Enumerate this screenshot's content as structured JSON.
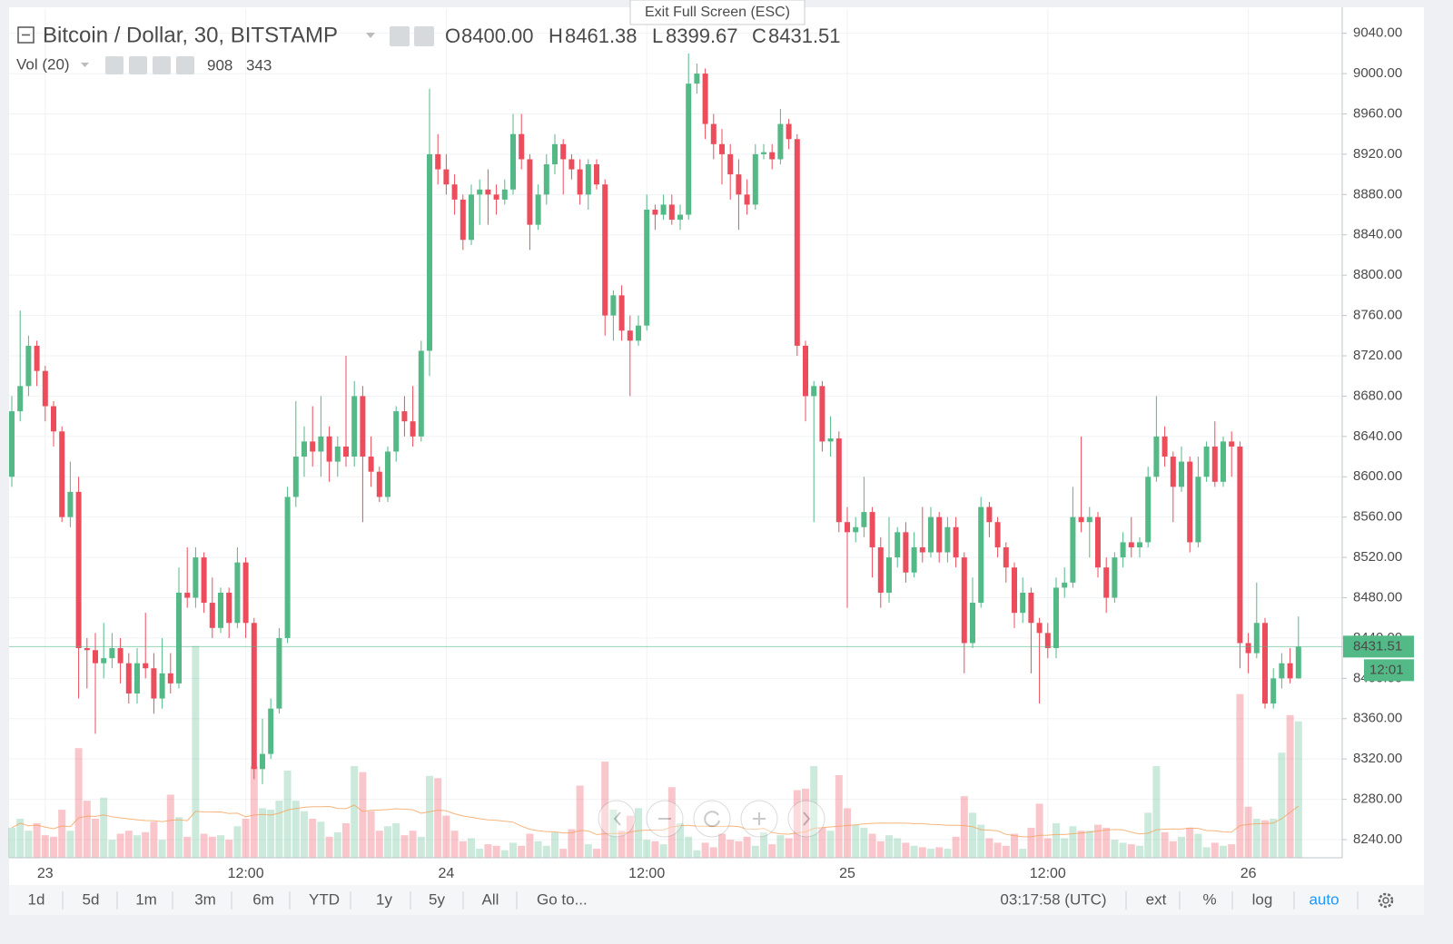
{
  "chart_data": {
    "type": "candlestick",
    "title": "Bitcoin / Dollar, 30, BITSTAMP",
    "ohlc_legend": [
      {
        "key": "O",
        "label": "8400.00"
      },
      {
        "key": "H",
        "label": "8461.38"
      },
      {
        "key": "L",
        "label": "8399.67"
      },
      {
        "key": "C",
        "label": "8431.51"
      }
    ],
    "volume_legend": {
      "label": "Vol (20)",
      "value": 908,
      "ma": 343
    },
    "countdown": "12:01",
    "exit_button": "Exit Full Screen (ESC)",
    "up_color": "#53b987",
    "down_color": "#eb4d5c",
    "ma_color": "#f5a25d",
    "grid": true,
    "categories": [
      null,
      null,
      null,
      null,
      "23",
      null,
      null,
      null,
      null,
      null,
      null,
      null,
      null,
      null,
      null,
      null,
      null,
      null,
      null,
      null,
      null,
      null,
      null,
      null,
      null,
      null,
      null,
      null,
      "12:00",
      null,
      null,
      null,
      null,
      null,
      null,
      null,
      null,
      null,
      null,
      null,
      null,
      null,
      null,
      null,
      null,
      null,
      null,
      null,
      null,
      null,
      null,
      null,
      "24",
      null,
      null,
      null,
      null,
      null,
      null,
      null,
      null,
      null,
      null,
      null,
      null,
      null,
      null,
      null,
      null,
      null,
      null,
      null,
      null,
      null,
      null,
      null,
      "12:00",
      null,
      null,
      null,
      null,
      null,
      null,
      null,
      null,
      null,
      null,
      null,
      null,
      null,
      null,
      null,
      null,
      null,
      null,
      null,
      null,
      null,
      null,
      null,
      "25",
      null,
      null,
      null,
      null,
      null,
      null,
      null,
      null,
      null,
      null,
      null,
      null,
      null,
      null,
      null,
      null,
      null,
      null,
      null,
      null,
      null,
      null,
      null,
      "12:00",
      null,
      null,
      null,
      null,
      null,
      null,
      null,
      null,
      null,
      null,
      null,
      null,
      null,
      null,
      null,
      null,
      null,
      null,
      null,
      null,
      null,
      null,
      null,
      "26",
      null,
      null,
      null,
      null,
      null,
      null
    ],
    "open": [
      8600,
      8665,
      8690,
      8730,
      8705,
      8670,
      8645,
      8560,
      8585,
      8430,
      8428,
      8415,
      8420,
      8430,
      8415,
      8385,
      8415,
      8410,
      8380,
      8405,
      8395,
      8485,
      8480,
      8520,
      8475,
      8450,
      8485,
      8455,
      8515,
      8455,
      8310,
      8325,
      8370,
      8440,
      8580,
      8620,
      8635,
      8625,
      8640,
      8615,
      8630,
      8620,
      8680,
      8620,
      8605,
      8580,
      8625,
      8665,
      8655,
      8640,
      8725,
      8920,
      8905,
      8890,
      8875,
      8835,
      8880,
      8885,
      8880,
      8875,
      8885,
      8940,
      8915,
      8850,
      8880,
      8910,
      8930,
      8915,
      8905,
      8880,
      8910,
      8890,
      8760,
      8780,
      8745,
      8735,
      8750,
      8865,
      8860,
      8870,
      8855,
      8860,
      8990,
      9000,
      8950,
      8930,
      8920,
      8900,
      8880,
      8870,
      8920,
      8922,
      8915,
      8950,
      8935,
      8730,
      8680,
      8690,
      8635,
      8638,
      8555,
      8545,
      8550,
      8565,
      8530,
      8485,
      8520,
      8545,
      8505,
      8530,
      8525,
      8560,
      8525,
      8550,
      8520,
      8435,
      8475,
      8570,
      8555,
      8530,
      8510,
      8465,
      8485,
      8455,
      8445,
      8430,
      8490,
      8495,
      8560,
      8555,
      8560,
      8510,
      8480,
      8520,
      8535,
      8530,
      8535,
      8600,
      8640,
      8620,
      8590,
      8615,
      8535,
      8600,
      8630,
      8595,
      8635,
      8630,
      8435,
      8425,
      8455,
      8375,
      8400,
      8415,
      8400
    ],
    "high": [
      8680,
      8765,
      8740,
      8735,
      8710,
      8675,
      8650,
      8615,
      8600,
      8440,
      8445,
      8455,
      8445,
      8440,
      8425,
      8430,
      8465,
      8425,
      8440,
      8425,
      8510,
      8530,
      8530,
      8525,
      8500,
      8490,
      8490,
      8530,
      8520,
      8460,
      8360,
      8380,
      8450,
      8590,
      8675,
      8650,
      8670,
      8680,
      8650,
      8640,
      8720,
      8695,
      8690,
      8640,
      8610,
      8630,
      8670,
      8680,
      8690,
      8735,
      8985,
      8940,
      8920,
      8900,
      8880,
      8890,
      8895,
      8905,
      8890,
      8895,
      8960,
      8960,
      8920,
      8890,
      8920,
      8940,
      8935,
      8920,
      8915,
      8915,
      8915,
      8895,
      8785,
      8790,
      8760,
      8760,
      8880,
      8870,
      8880,
      8880,
      8870,
      9020,
      9010,
      9005,
      8960,
      8945,
      8930,
      8915,
      8895,
      8930,
      8930,
      8930,
      8965,
      8955,
      8940,
      8735,
      8695,
      8695,
      8660,
      8645,
      8570,
      8560,
      8600,
      8570,
      8540,
      8560,
      8550,
      8555,
      8545,
      8570,
      8570,
      8565,
      8560,
      8560,
      8525,
      8500,
      8580,
      8575,
      8560,
      8535,
      8515,
      8500,
      8490,
      8460,
      8455,
      8500,
      8510,
      8590,
      8640,
      8570,
      8565,
      8520,
      8525,
      8545,
      8560,
      8540,
      8610,
      8680,
      8650,
      8625,
      8630,
      8620,
      8620,
      8635,
      8655,
      8640,
      8645,
      8635,
      8445,
      8495,
      8460,
      8410,
      8425,
      8430,
      8461.38
    ],
    "low": [
      8590,
      8655,
      8680,
      8690,
      8655,
      8630,
      8555,
      8550,
      8380,
      8390,
      8345,
      8400,
      8410,
      8395,
      8375,
      8375,
      8400,
      8365,
      8370,
      8385,
      8390,
      8470,
      8470,
      8465,
      8440,
      8445,
      8440,
      8450,
      8440,
      8300,
      8295,
      8320,
      8365,
      8435,
      8570,
      8600,
      8610,
      8600,
      8595,
      8600,
      8610,
      8610,
      8555,
      8590,
      8575,
      8575,
      8615,
      8640,
      8630,
      8635,
      8700,
      8890,
      8880,
      8860,
      8825,
      8830,
      8850,
      8850,
      8860,
      8870,
      8880,
      8905,
      8825,
      8845,
      8870,
      8900,
      8880,
      8895,
      8870,
      8865,
      8885,
      8740,
      8735,
      8735,
      8680,
      8730,
      8745,
      8845,
      8855,
      8850,
      8845,
      8855,
      8980,
      8935,
      8915,
      8890,
      8875,
      8845,
      8860,
      8865,
      8915,
      8905,
      8910,
      8925,
      8720,
      8655,
      8555,
      8625,
      8620,
      8545,
      8470,
      8535,
      8540,
      8500,
      8470,
      8475,
      8510,
      8495,
      8500,
      8515,
      8520,
      8515,
      8515,
      8510,
      8405,
      8430,
      8470,
      8540,
      8520,
      8495,
      8450,
      8455,
      8405,
      8375,
      8420,
      8420,
      8480,
      8490,
      8545,
      8520,
      8500,
      8465,
      8475,
      8510,
      8520,
      8520,
      8530,
      8595,
      8610,
      8555,
      8585,
      8525,
      8530,
      8595,
      8590,
      8590,
      8600,
      8410,
      8405,
      8420,
      8370,
      8370,
      8390,
      8395,
      8399.67
    ],
    "close": [
      8665,
      8690,
      8730,
      8705,
      8670,
      8645,
      8560,
      8585,
      8430,
      8428,
      8415,
      8420,
      8430,
      8415,
      8385,
      8415,
      8410,
      8380,
      8405,
      8395,
      8485,
      8480,
      8520,
      8475,
      8450,
      8485,
      8455,
      8515,
      8455,
      8310,
      8325,
      8370,
      8440,
      8580,
      8620,
      8635,
      8625,
      8640,
      8615,
      8630,
      8620,
      8680,
      8620,
      8605,
      8580,
      8625,
      8665,
      8655,
      8640,
      8725,
      8920,
      8905,
      8890,
      8875,
      8835,
      8880,
      8885,
      8880,
      8875,
      8885,
      8940,
      8915,
      8850,
      8880,
      8910,
      8930,
      8915,
      8905,
      8880,
      8910,
      8890,
      8760,
      8780,
      8745,
      8735,
      8750,
      8865,
      8860,
      8870,
      8855,
      8860,
      8990,
      9000,
      8950,
      8930,
      8920,
      8900,
      8880,
      8870,
      8920,
      8922,
      8915,
      8950,
      8935,
      8730,
      8680,
      8690,
      8635,
      8638,
      8555,
      8545,
      8550,
      8565,
      8530,
      8485,
      8520,
      8545,
      8505,
      8530,
      8525,
      8560,
      8525,
      8550,
      8520,
      8435,
      8475,
      8570,
      8555,
      8530,
      8510,
      8465,
      8485,
      8455,
      8445,
      8430,
      8490,
      8495,
      8560,
      8555,
      8560,
      8510,
      8480,
      8520,
      8535,
      8530,
      8535,
      8600,
      8640,
      8620,
      8590,
      8615,
      8535,
      8600,
      8630,
      8595,
      8635,
      8630,
      8435,
      8425,
      8455,
      8375,
      8400,
      8415,
      8400,
      8431.51
    ],
    "volume": {
      "ylim": [
        0,
        5650
      ],
      "values": [
        200,
        260,
        180,
        230,
        150,
        140,
        320,
        180,
        730,
        380,
        260,
        400,
        120,
        160,
        180,
        150,
        170,
        240,
        120,
        420,
        270,
        140,
        1410,
        160,
        140,
        150,
        120,
        210,
        260,
        610,
        330,
        320,
        380,
        580,
        380,
        310,
        260,
        240,
        140,
        170,
        230,
        610,
        570,
        310,
        180,
        210,
        230,
        150,
        180,
        140,
        545,
        530,
        280,
        180,
        110,
        130,
        60,
        90,
        80,
        50,
        100,
        80,
        160,
        110,
        80,
        170,
        60,
        190,
        480,
        90,
        60,
        640,
        320,
        180,
        280,
        330,
        120,
        110,
        90,
        470,
        230,
        140,
        50,
        100,
        70,
        160,
        120,
        110,
        140,
        80,
        170,
        90,
        150,
        130,
        450,
        460,
        610,
        200,
        180,
        550,
        330,
        220,
        200,
        160,
        110,
        150,
        130,
        100,
        80,
        70,
        60,
        70,
        60,
        140,
        410,
        300,
        220,
        130,
        100,
        80,
        160,
        60,
        200,
        360,
        130,
        230,
        130,
        210,
        180,
        180,
        220,
        200,
        120,
        100,
        90,
        80,
        300,
        610,
        170,
        110,
        140,
        200,
        160,
        70,
        100,
        80,
        90,
        1090,
        340,
        260,
        250,
        260,
        700,
        950,
        908
      ]
    },
    "ylim": [
      8222,
      9064
    ],
    "yticks": [
      {
        "value": 8240,
        "label": "8240.00"
      },
      {
        "value": 8280,
        "label": "8280.00"
      },
      {
        "value": 8320,
        "label": "8320.00"
      },
      {
        "value": 8360,
        "label": "8360.00"
      },
      {
        "value": 8400,
        "label": "8400.00"
      },
      {
        "value": 8440,
        "label": "8440.00"
      },
      {
        "value": 8480,
        "label": "8480.00"
      },
      {
        "value": 8520,
        "label": "8520.00"
      },
      {
        "value": 8560,
        "label": "8560.00"
      },
      {
        "value": 8600,
        "label": "8600.00"
      },
      {
        "value": 8640,
        "label": "8640.00"
      },
      {
        "value": 8680,
        "label": "8680.00"
      },
      {
        "value": 8720,
        "label": "8720.00"
      },
      {
        "value": 8760,
        "label": "8760.00"
      },
      {
        "value": 8800,
        "label": "8800.00"
      },
      {
        "value": 8840,
        "label": "8840.00"
      },
      {
        "value": 8880,
        "label": "8880.00"
      },
      {
        "value": 8920,
        "label": "8920.00"
      },
      {
        "value": 8960,
        "label": "8960.00"
      },
      {
        "value": 9000,
        "label": "9000.00"
      },
      {
        "value": 9040,
        "label": "9040.00"
      }
    ],
    "toolbar": {
      "ranges": [
        "1d",
        "5d",
        "1m",
        "3m",
        "6m",
        "YTD",
        "1y",
        "5y",
        "All"
      ],
      "goto": "Go to...",
      "clock": "03:17:58 (UTC)",
      "options": [
        "ext",
        "%",
        "log",
        "auto"
      ]
    }
  }
}
